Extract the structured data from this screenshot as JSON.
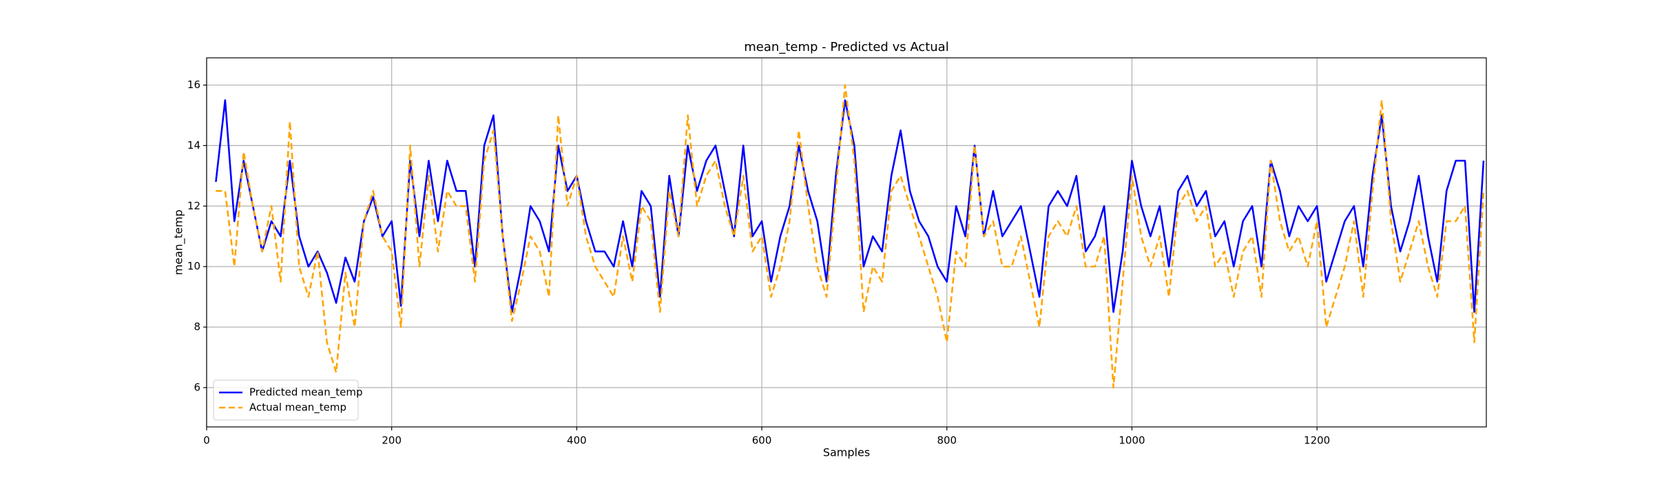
{
  "chart_data": {
    "type": "line",
    "title": "mean_temp - Predicted vs Actual",
    "x_label": "Samples",
    "y_label": "mean_temp",
    "x": [
      10,
      20,
      30,
      40,
      50,
      60,
      70,
      80,
      90,
      100,
      110,
      120,
      130,
      140,
      150,
      160,
      170,
      180,
      190,
      200,
      210,
      220,
      230,
      240,
      250,
      260,
      270,
      280,
      290,
      300,
      310,
      320,
      330,
      340,
      350,
      360,
      370,
      380,
      390,
      400,
      410,
      420,
      430,
      440,
      450,
      460,
      470,
      480,
      490,
      500,
      510,
      520,
      530,
      540,
      550,
      560,
      570,
      580,
      590,
      600,
      610,
      620,
      630,
      640,
      650,
      660,
      670,
      680,
      690,
      700,
      710,
      720,
      730,
      740,
      750,
      760,
      770,
      780,
      790,
      800,
      810,
      820,
      830,
      840,
      850,
      860,
      870,
      880,
      890,
      900,
      910,
      920,
      930,
      940,
      950,
      960,
      970,
      980,
      990,
      1000,
      1010,
      1020,
      1030,
      1040,
      1050,
      1060,
      1070,
      1080,
      1090,
      1100,
      1110,
      1120,
      1130,
      1140,
      1150,
      1160,
      1170,
      1180,
      1190,
      1200,
      1210,
      1220,
      1230,
      1240,
      1250,
      1260,
      1270,
      1280,
      1290,
      1300,
      1310,
      1320,
      1330,
      1340,
      1350,
      1360,
      1370,
      1380
    ],
    "series": [
      {
        "name": "Predicted mean_temp",
        "color": "#0000ff",
        "linestyle": "solid",
        "values": [
          12.8,
          15.5,
          11.5,
          13.5,
          12,
          10.5,
          11.5,
          11,
          13.5,
          11,
          10,
          10.5,
          9.8,
          8.8,
          10.3,
          9.5,
          11.5,
          12.3,
          11,
          11.5,
          8.7,
          13.5,
          11,
          13.5,
          11.5,
          13.5,
          12.5,
          12.5,
          10,
          14,
          15,
          11,
          8.5,
          10,
          12,
          11.5,
          10.5,
          14,
          12.5,
          13,
          11.5,
          10.5,
          10.5,
          10,
          11.5,
          10,
          12.5,
          12,
          9,
          13,
          11,
          14,
          12.5,
          13.5,
          14,
          12.5,
          11,
          14,
          11,
          11.5,
          9.5,
          11,
          12,
          14,
          12.5,
          11.5,
          9.5,
          13,
          15.5,
          14,
          10,
          11,
          10.5,
          13,
          14.5,
          12.5,
          11.5,
          11,
          10,
          9.5,
          12,
          11,
          14,
          11,
          12.5,
          11,
          11.5,
          12,
          10.5,
          9,
          12,
          12.5,
          12,
          13,
          10.5,
          11,
          12,
          8.5,
          10.5,
          13.5,
          12,
          11,
          12,
          10,
          12.5,
          13,
          12,
          12.5,
          11,
          11.5,
          10,
          11.5,
          12,
          10,
          13.5,
          12.5,
          11,
          12,
          11.5,
          12,
          9.5,
          10.5,
          11.5,
          12,
          10,
          13,
          15,
          12,
          10.5,
          11.5,
          13,
          11,
          9.5,
          12.5,
          13.5,
          13.5,
          8.5,
          13.5
        ]
      },
      {
        "name": "Actual mean_temp",
        "color": "#ffa500",
        "linestyle": "dashed",
        "values": [
          12.5,
          12.5,
          10,
          13.8,
          12,
          10.5,
          12,
          9.5,
          14.8,
          10,
          9,
          10.5,
          7.5,
          6.5,
          9.8,
          8,
          11.5,
          12.5,
          11,
          10.5,
          8,
          14,
          10,
          13,
          10.5,
          12.5,
          12,
          12,
          9.5,
          13.5,
          14.5,
          11,
          8.2,
          9.5,
          11,
          10.5,
          9,
          15,
          12,
          13,
          11,
          10,
          9.5,
          9,
          11,
          9.5,
          12,
          11.5,
          8.5,
          12.5,
          11,
          15,
          12,
          13,
          13.5,
          12,
          11,
          13,
          10.5,
          11,
          9,
          10,
          11.5,
          14.5,
          12,
          10,
          9,
          12.5,
          16,
          13.5,
          8.5,
          10,
          9.5,
          12.5,
          13,
          12,
          11,
          10,
          9,
          7.5,
          10.5,
          10,
          14,
          11,
          11.5,
          10,
          10,
          11,
          9.5,
          8,
          11,
          11.5,
          11,
          12,
          10,
          10,
          11,
          6,
          9.5,
          13,
          11,
          10,
          11,
          9,
          12,
          12.5,
          11.5,
          12,
          10,
          10.5,
          9,
          10.5,
          11,
          9,
          13.5,
          11.5,
          10.5,
          11,
          10,
          11.5,
          8,
          9,
          10,
          11.5,
          9,
          12.5,
          15.5,
          11.5,
          9.5,
          10.5,
          11.5,
          10,
          9,
          11.5,
          11.5,
          12,
          7.5,
          12.5
        ]
      }
    ],
    "xlim": [
      0,
      1383
    ],
    "ylim": [
      4.7,
      16.9
    ],
    "xticks": [
      0,
      200,
      400,
      600,
      800,
      1000,
      1200
    ],
    "yticks": [
      6,
      8,
      10,
      12,
      14,
      16
    ],
    "grid": true,
    "legend": "lower left"
  }
}
